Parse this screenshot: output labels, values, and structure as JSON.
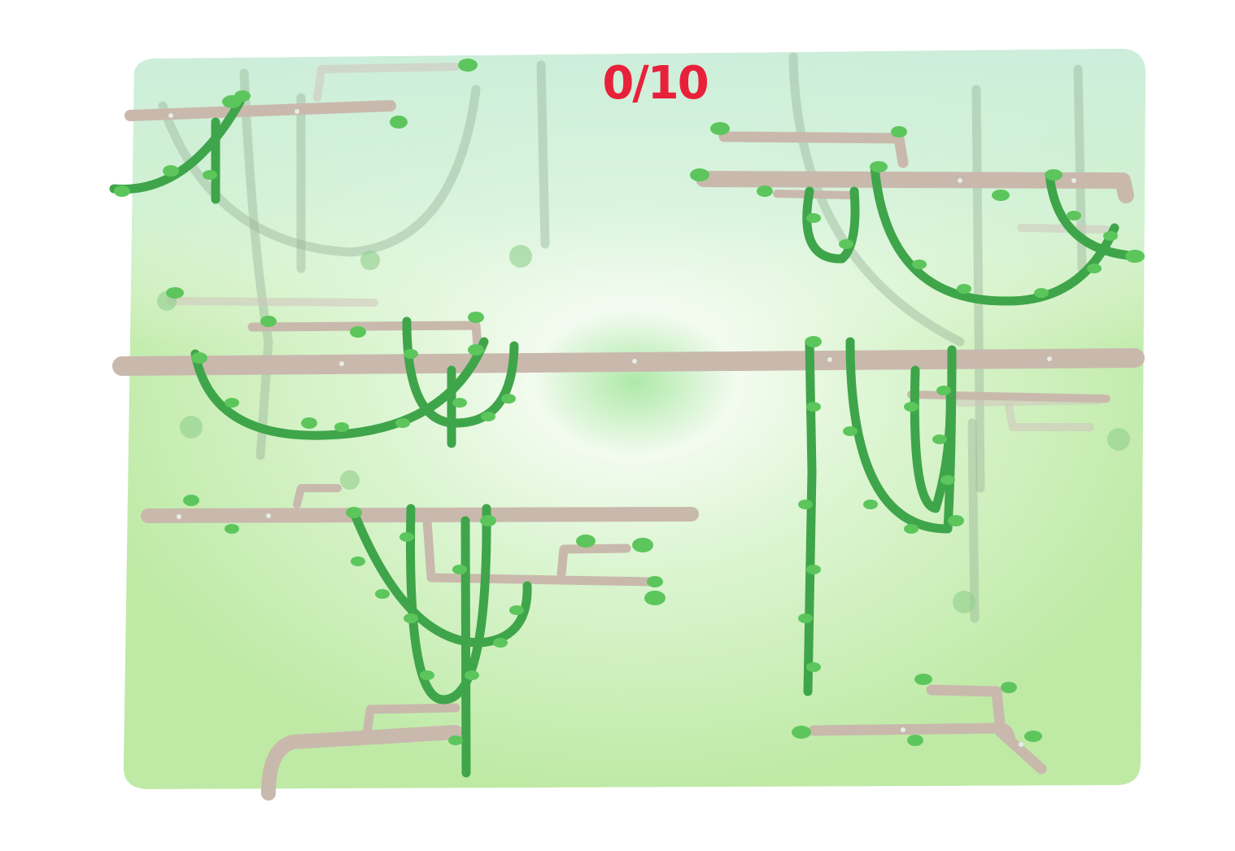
{
  "hud": {
    "score": "0/10"
  },
  "colors": {
    "background_green": "#c8f0b4",
    "sky_tint": "#d6f3df",
    "branch": "#c9b9ad",
    "vine": "#3fa54a",
    "leaf": "#5cc65c",
    "score": "#e8213b"
  },
  "scene": {
    "elements": [
      "branches",
      "hanging-vines",
      "leaves"
    ]
  }
}
